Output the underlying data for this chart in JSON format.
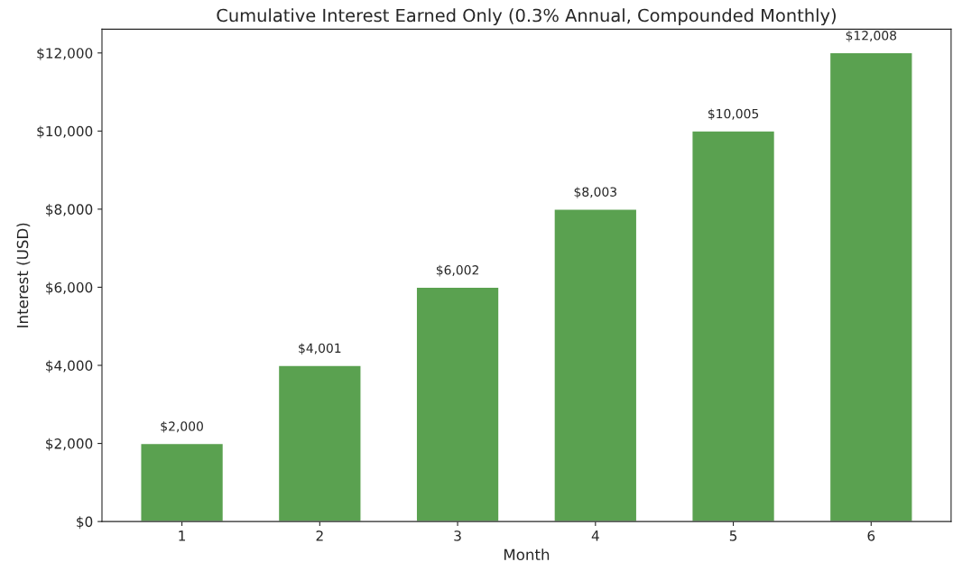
{
  "chart_data": {
    "type": "bar",
    "title": "Cumulative Interest Earned Only (0.3% Annual, Compounded Monthly)",
    "xlabel": "Month",
    "ylabel": "Interest (USD)",
    "categories": [
      "1",
      "2",
      "3",
      "4",
      "5",
      "6"
    ],
    "values": [
      2000,
      4001,
      6002,
      8003,
      10005,
      12008
    ],
    "value_labels": [
      "$2,000",
      "$4,001",
      "$6,002",
      "$8,003",
      "$10,005",
      "$12,008"
    ],
    "color": "#5aa150",
    "ylim": [
      0,
      12608
    ],
    "yticks": [
      {
        "value": 0,
        "label": "$0"
      },
      {
        "value": 2000,
        "label": "$2,000"
      },
      {
        "value": 4000,
        "label": "$4,000"
      },
      {
        "value": 6000,
        "label": "$6,000"
      },
      {
        "value": 8000,
        "label": "$8,000"
      },
      {
        "value": 10000,
        "label": "$10,000"
      },
      {
        "value": 12000,
        "label": "$12,000"
      }
    ],
    "grid": false,
    "legend": false
  }
}
